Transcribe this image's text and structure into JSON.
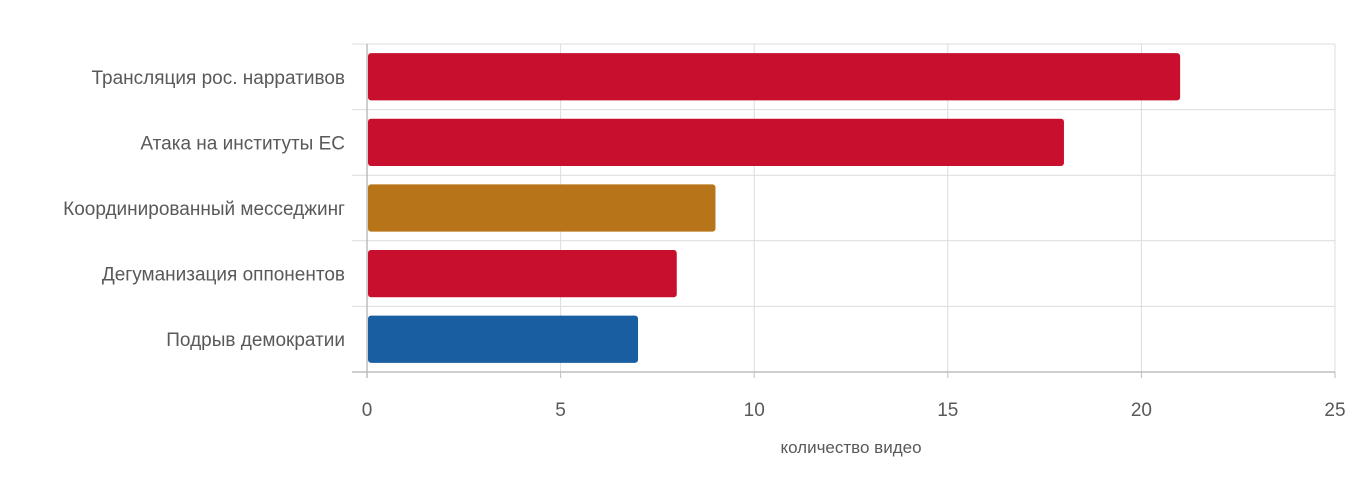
{
  "chart_data": {
    "type": "bar",
    "orientation": "horizontal",
    "categories": [
      "Трансляция рос. нарративов",
      "Атака на институты ЕС",
      "Координированный месседжинг",
      "Дегуманизация оппонентов",
      "Подрыв демократии"
    ],
    "values": [
      21,
      18,
      9,
      8,
      7
    ],
    "colors": [
      "#C8102E",
      "#C8102E",
      "#B87418",
      "#C8102E",
      "#1A5EA2"
    ],
    "xlabel": "количество видео",
    "ylabel": "",
    "xlim": [
      0,
      25
    ],
    "xticks": [
      "0",
      "5",
      "10",
      "15",
      "20",
      "25"
    ],
    "grid": true,
    "legend": "none"
  }
}
